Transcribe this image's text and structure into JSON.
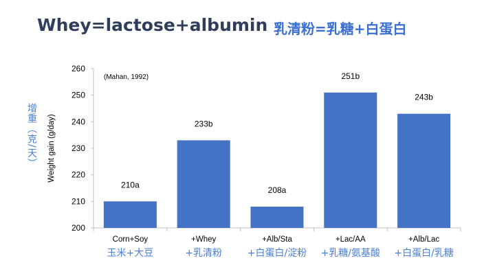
{
  "title": {
    "english": "Whey=lactose+albumin",
    "chinese": "乳清粉=乳糖+白蛋白"
  },
  "chart_data": {
    "type": "bar",
    "categories": [
      "Corn+Soy",
      "+Whey",
      "+Alb/Sta",
      "+Lac/AA",
      "+Alb/Lac"
    ],
    "categories_zh": [
      "玉米+大豆",
      "+乳清粉",
      "+白蛋白/淀粉",
      "+乳糖/氨基酸",
      "+白蛋白/乳糖"
    ],
    "values": [
      210,
      233,
      208,
      251,
      243
    ],
    "data_labels": [
      "210a",
      "233b",
      "208a",
      "251b",
      "243b"
    ],
    "ylabel": "Weight gain (g/day)",
    "ylabel_zh": "增重（克/天）",
    "ylim": [
      200,
      260
    ],
    "yticks": [
      200,
      210,
      220,
      230,
      240,
      250,
      260
    ],
    "annotation": "(Mahan, 1992)",
    "bar_color": "#4472c4",
    "grid": false
  }
}
